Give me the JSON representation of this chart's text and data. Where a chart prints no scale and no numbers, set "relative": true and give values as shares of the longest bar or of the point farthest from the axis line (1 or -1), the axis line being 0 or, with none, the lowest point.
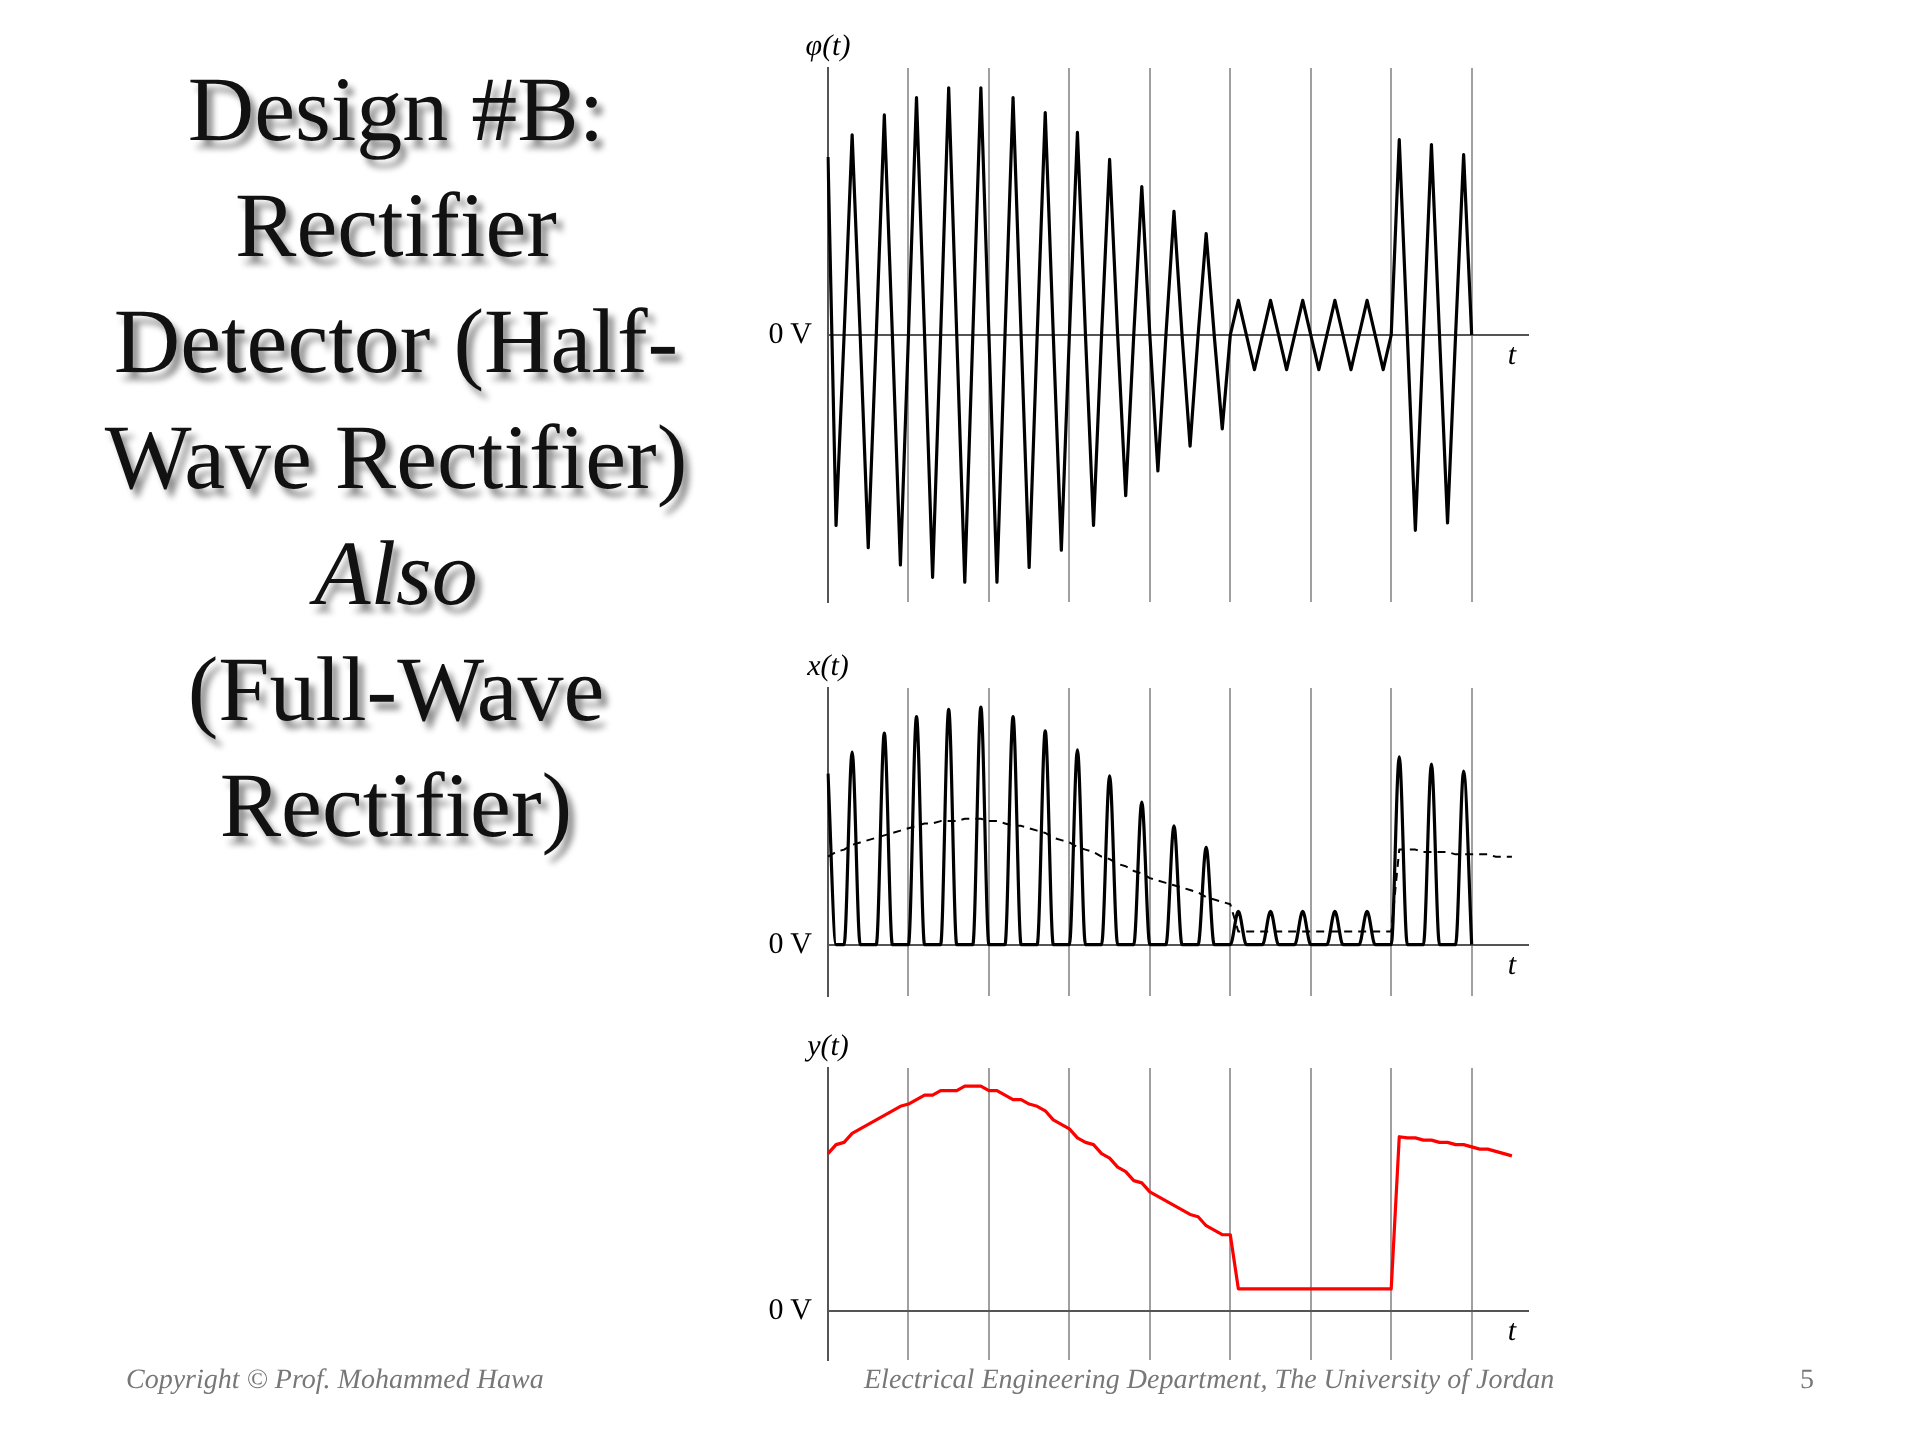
{
  "chart_data": [
    {
      "type": "line",
      "ylabel": "φ(t)",
      "xlabel": "t",
      "relative": true,
      "grid": "x",
      "marker": "none",
      "annotations": [
        "0 V"
      ],
      "categories": [
        null,
        null,
        null,
        null,
        null,
        null,
        null,
        null,
        null,
        null,
        null,
        null,
        null,
        null,
        null,
        null,
        null,
        null,
        null,
        null,
        null,
        null,
        null,
        null,
        null,
        null,
        null,
        null,
        null,
        null,
        null,
        null,
        null,
        null,
        null,
        null,
        null,
        null,
        null,
        null,
        null,
        null,
        null,
        null,
        null,
        null,
        null,
        null,
        null,
        null,
        null,
        null,
        null,
        null,
        null,
        null,
        null,
        null,
        null,
        null,
        null,
        null,
        null,
        null,
        null,
        null,
        null,
        null,
        null,
        null,
        null,
        null,
        null,
        null,
        null,
        null,
        null,
        null,
        null,
        null,
        null,
        null,
        null,
        null,
        null,
        null,
        null,
        null
      ],
      "series": [
        {
          "color": "#000000",
          "values": [
            0.72,
            -0.77,
            0,
            0.81,
            0,
            -0.86,
            0,
            0.89,
            0,
            -0.93,
            0,
            0.96,
            0,
            -0.98,
            0,
            1.0,
            0,
            -1.0,
            0,
            1.0,
            0,
            -1.0,
            0,
            0.96,
            0,
            -0.94,
            0,
            0.9,
            0,
            -0.87,
            0,
            0.82,
            0,
            -0.77,
            0,
            0.71,
            0,
            -0.65,
            0,
            0.6,
            0,
            -0.55,
            0,
            0.5,
            0,
            -0.45,
            0,
            0.41,
            0,
            -0.38,
            0,
            0.14,
            0,
            -0.14,
            0,
            0.14,
            0,
            -0.14,
            0,
            0.14,
            0,
            -0.14,
            0,
            0.14,
            0,
            -0.14,
            0,
            0.14,
            0,
            -0.14,
            0,
            0.79,
            0,
            -0.79,
            0,
            0.77,
            0,
            -0.76,
            0,
            0.73,
            0,
            null,
            null,
            null,
            null,
            null,
            null,
            null
          ]
        }
      ]
    },
    {
      "type": "line",
      "ylabel": "x(t)",
      "xlabel": "t",
      "relative": true,
      "grid": "x",
      "marker": "none",
      "annotations": [
        "0 V"
      ],
      "categories": [
        null,
        null,
        null,
        null,
        null,
        null,
        null,
        null,
        null,
        null,
        null,
        null,
        null,
        null,
        null,
        null,
        null,
        null,
        null,
        null,
        null,
        null,
        null,
        null,
        null,
        null,
        null,
        null,
        null,
        null,
        null,
        null,
        null,
        null,
        null,
        null,
        null,
        null,
        null,
        null,
        null,
        null,
        null,
        null,
        null,
        null,
        null,
        null,
        null,
        null,
        null,
        null,
        null,
        null,
        null,
        null,
        null,
        null,
        null,
        null,
        null,
        null,
        null,
        null,
        null,
        null,
        null,
        null,
        null,
        null,
        null,
        null,
        null,
        null,
        null,
        null,
        null,
        null,
        null,
        null,
        null,
        null,
        null,
        null,
        null,
        null,
        null,
        null
      ],
      "series": [
        {
          "color": "#000000",
          "line_style": "solid",
          "values": [
            0.72,
            0,
            0,
            0.81,
            0,
            0,
            0,
            0.89,
            0,
            0,
            0,
            0.96,
            0,
            0,
            0,
            0.99,
            0,
            0,
            0,
            1.0,
            0,
            0,
            0,
            0.96,
            0,
            0,
            0,
            0.9,
            0,
            0,
            0,
            0.82,
            0,
            0,
            0,
            0.71,
            0,
            0,
            0,
            0.6,
            0,
            0,
            0,
            0.5,
            0,
            0,
            0,
            0.41,
            0,
            0,
            0,
            0.14,
            0,
            0,
            0,
            0.14,
            0,
            0,
            0,
            0.14,
            0,
            0,
            0,
            0.14,
            0,
            0,
            0,
            0.14,
            0,
            0,
            0,
            0.79,
            0,
            0,
            0,
            0.76,
            0,
            0,
            0,
            0.73,
            0,
            null,
            null,
            null,
            null,
            null,
            null,
            null
          ]
        },
        {
          "color": "#000000",
          "line_style": "dashed",
          "values": [
            0.37,
            0.39,
            0.4,
            0.42,
            0.43,
            0.44,
            0.45,
            0.46,
            0.47,
            0.48,
            0.49,
            0.5,
            0.51,
            0.51,
            0.52,
            0.52,
            0.52,
            0.53,
            0.53,
            0.53,
            0.52,
            0.52,
            0.51,
            0.5,
            0.5,
            0.49,
            0.48,
            0.47,
            0.45,
            0.44,
            0.43,
            0.41,
            0.4,
            0.39,
            0.37,
            0.36,
            0.34,
            0.33,
            0.31,
            0.3,
            0.28,
            0.27,
            0.26,
            0.25,
            0.24,
            0.23,
            0.22,
            0.2,
            0.19,
            0.18,
            0.17,
            0.055,
            0.055,
            0.055,
            0.055,
            0.055,
            0.055,
            0.055,
            0.055,
            0.055,
            0.055,
            0.055,
            0.055,
            0.055,
            0.055,
            0.055,
            0.055,
            0.055,
            0.055,
            0.055,
            0.055,
            0.4,
            0.4,
            0.4,
            0.39,
            0.39,
            0.39,
            0.39,
            0.38,
            0.38,
            0.38,
            0.38,
            0.38,
            0.37,
            0.37,
            0.37,
            null,
            null
          ]
        }
      ]
    },
    {
      "type": "line",
      "ylabel": "y(t)",
      "xlabel": "t",
      "relative": true,
      "grid": "x",
      "marker": "none",
      "annotations": [
        "0 V"
      ],
      "categories": [
        null,
        null,
        null,
        null,
        null,
        null,
        null,
        null,
        null,
        null,
        null,
        null,
        null,
        null,
        null,
        null,
        null,
        null,
        null,
        null,
        null,
        null,
        null,
        null,
        null,
        null,
        null,
        null,
        null,
        null,
        null,
        null,
        null,
        null,
        null,
        null,
        null,
        null,
        null,
        null,
        null,
        null,
        null,
        null,
        null,
        null,
        null,
        null,
        null,
        null,
        null,
        null,
        null,
        null,
        null,
        null,
        null,
        null,
        null,
        null,
        null,
        null,
        null,
        null,
        null,
        null,
        null,
        null,
        null,
        null,
        null,
        null,
        null,
        null,
        null,
        null,
        null,
        null,
        null,
        null,
        null,
        null,
        null,
        null,
        null,
        null,
        null,
        null
      ],
      "series": [
        {
          "color": "#ff0000",
          "values": [
            0.7,
            0.74,
            0.75,
            0.79,
            0.81,
            0.83,
            0.85,
            0.87,
            0.89,
            0.91,
            0.92,
            0.94,
            0.96,
            0.96,
            0.98,
            0.98,
            0.98,
            1.0,
            1.0,
            1.0,
            0.98,
            0.98,
            0.96,
            0.94,
            0.94,
            0.92,
            0.91,
            0.89,
            0.85,
            0.83,
            0.81,
            0.77,
            0.75,
            0.74,
            0.7,
            0.68,
            0.64,
            0.62,
            0.58,
            0.57,
            0.53,
            0.51,
            0.49,
            0.47,
            0.45,
            0.43,
            0.42,
            0.38,
            0.36,
            0.34,
            0.34,
            0.1,
            0.1,
            0.1,
            0.1,
            0.1,
            0.1,
            0.1,
            0.1,
            0.1,
            0.1,
            0.1,
            0.1,
            0.1,
            0.1,
            0.1,
            0.1,
            0.1,
            0.1,
            0.1,
            0.1,
            0.775,
            0.77,
            0.77,
            0.76,
            0.76,
            0.75,
            0.75,
            0.74,
            0.74,
            0.73,
            0.72,
            0.72,
            0.71,
            0.7,
            0.69,
            null,
            null
          ]
        }
      ]
    },
    {
      "type": "other",
      "title": "Design #B: Rectifier Detector (Half-Wave Rectifier)",
      "subtitle": "Also (Full-Wave Rectifier)",
      "annotations": [
        "Copyright © Prof. Mohammed Hawa",
        "Electrical Engineering Department, The University of Jordan",
        "5"
      ]
    }
  ]
}
